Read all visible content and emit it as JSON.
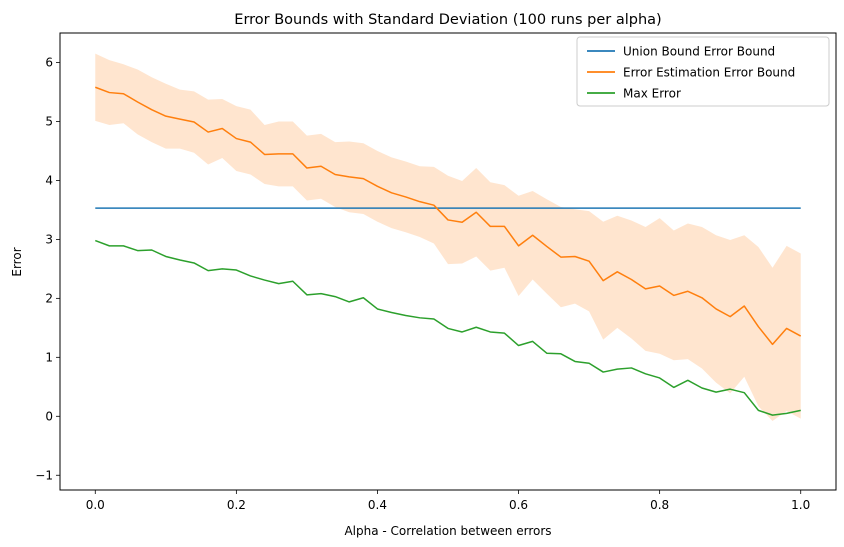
{
  "chart_data": {
    "type": "line",
    "title": "Error Bounds with Standard Deviation (100 runs per alpha)",
    "xlabel": "Alpha - Correlation between errors",
    "ylabel": "Error",
    "xlim": [
      -0.05,
      1.05
    ],
    "ylim": [
      -1.25,
      6.5
    ],
    "xticks": [
      0.0,
      0.2,
      0.4,
      0.6,
      0.8,
      1.0
    ],
    "xtick_labels": [
      "0.0",
      "0.2",
      "0.4",
      "0.6",
      "0.8",
      "1.0"
    ],
    "yticks": [
      -1,
      0,
      1,
      2,
      3,
      4,
      5,
      6
    ],
    "ytick_labels": [
      "−1",
      "0",
      "1",
      "2",
      "3",
      "4",
      "5",
      "6"
    ],
    "legend_position": "top-right",
    "grid": false,
    "series": [
      {
        "name": "Union Bound Error Bound",
        "color": "#1f77b4",
        "x": [
          0.0,
          1.0
        ],
        "values": [
          3.53,
          3.53
        ],
        "std": null
      },
      {
        "name": "Error Estimation Error Bound",
        "color": "#ff7f0e",
        "x": [
          0.0,
          0.02,
          0.04,
          0.06,
          0.08,
          0.1,
          0.12,
          0.14,
          0.16,
          0.18,
          0.2,
          0.22,
          0.24,
          0.26,
          0.28,
          0.3,
          0.32,
          0.34,
          0.36,
          0.38,
          0.4,
          0.42,
          0.44,
          0.46,
          0.48,
          0.5,
          0.52,
          0.54,
          0.56,
          0.58,
          0.6,
          0.62,
          0.64,
          0.66,
          0.68,
          0.7,
          0.72,
          0.74,
          0.76,
          0.78,
          0.8,
          0.82,
          0.84,
          0.86,
          0.88,
          0.9,
          0.92,
          0.94,
          0.96,
          0.98,
          1.0
        ],
        "values": [
          5.58,
          5.49,
          5.47,
          5.33,
          5.2,
          5.09,
          5.04,
          4.99,
          4.82,
          4.88,
          4.71,
          4.65,
          4.44,
          4.45,
          4.45,
          4.21,
          4.24,
          4.1,
          4.06,
          4.03,
          3.9,
          3.79,
          3.72,
          3.64,
          3.58,
          3.33,
          3.29,
          3.46,
          3.22,
          3.22,
          2.89,
          3.07,
          2.88,
          2.7,
          2.71,
          2.63,
          2.3,
          2.45,
          2.32,
          2.16,
          2.21,
          2.05,
          2.12,
          2.01,
          1.82,
          1.69,
          1.87,
          1.52,
          1.22,
          1.49,
          1.36
        ],
        "std": [
          0.57,
          0.55,
          0.5,
          0.55,
          0.55,
          0.55,
          0.5,
          0.52,
          0.55,
          0.5,
          0.55,
          0.55,
          0.5,
          0.55,
          0.55,
          0.55,
          0.55,
          0.55,
          0.6,
          0.6,
          0.6,
          0.6,
          0.6,
          0.6,
          0.65,
          0.75,
          0.7,
          0.75,
          0.75,
          0.7,
          0.85,
          0.75,
          0.8,
          0.85,
          0.8,
          0.85,
          1.0,
          0.95,
          1.0,
          1.05,
          1.15,
          1.1,
          1.15,
          1.2,
          1.25,
          1.3,
          1.2,
          1.35,
          1.3,
          1.4,
          1.4
        ]
      },
      {
        "name": "Max Error",
        "color": "#2ca02c",
        "x": [
          0.0,
          0.02,
          0.04,
          0.06,
          0.08,
          0.1,
          0.12,
          0.14,
          0.16,
          0.18,
          0.2,
          0.22,
          0.24,
          0.26,
          0.28,
          0.3,
          0.32,
          0.34,
          0.36,
          0.38,
          0.4,
          0.42,
          0.44,
          0.46,
          0.48,
          0.5,
          0.52,
          0.54,
          0.56,
          0.58,
          0.6,
          0.62,
          0.64,
          0.66,
          0.68,
          0.7,
          0.72,
          0.74,
          0.76,
          0.78,
          0.8,
          0.82,
          0.84,
          0.86,
          0.88,
          0.9,
          0.92,
          0.94,
          0.96,
          0.98,
          1.0
        ],
        "values": [
          2.98,
          2.89,
          2.89,
          2.81,
          2.82,
          2.71,
          2.65,
          2.6,
          2.47,
          2.5,
          2.48,
          2.38,
          2.31,
          2.25,
          2.29,
          2.06,
          2.08,
          2.03,
          1.94,
          2.01,
          1.82,
          1.76,
          1.71,
          1.67,
          1.65,
          1.49,
          1.43,
          1.51,
          1.43,
          1.41,
          1.2,
          1.27,
          1.07,
          1.06,
          0.93,
          0.9,
          0.75,
          0.8,
          0.82,
          0.72,
          0.65,
          0.49,
          0.61,
          0.48,
          0.41,
          0.46,
          0.4,
          0.1,
          0.02,
          0.05,
          0.1
        ]
      }
    ]
  }
}
